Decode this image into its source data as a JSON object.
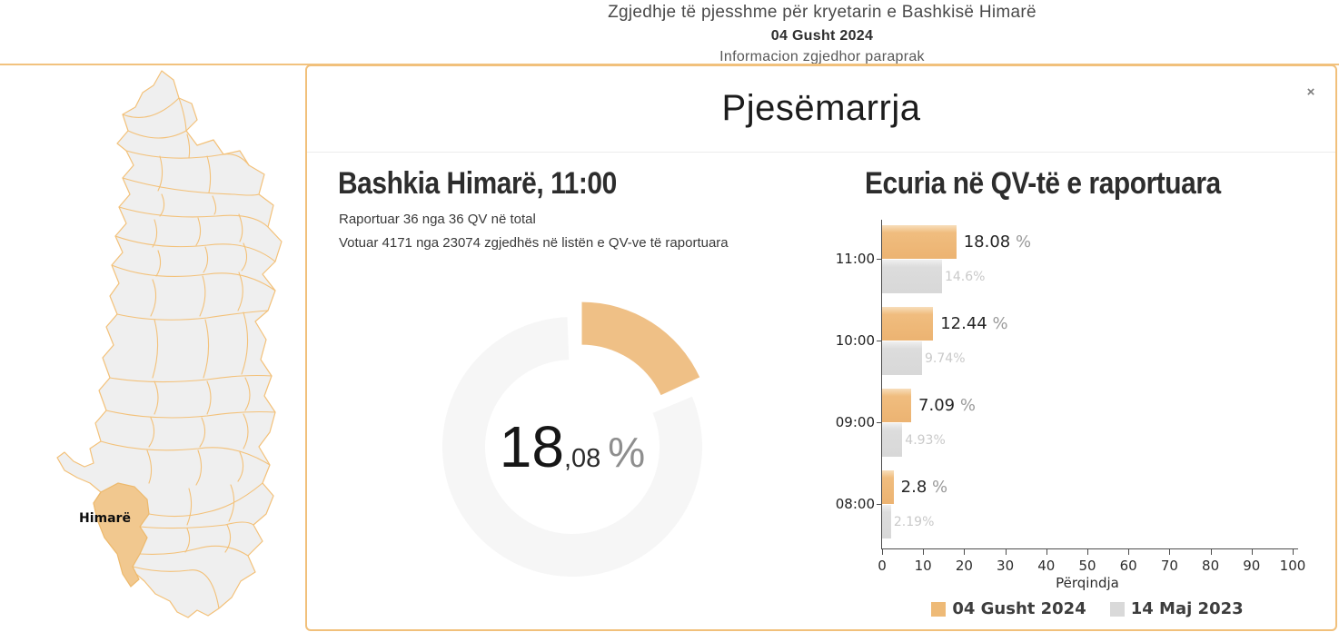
{
  "header": {
    "title": "Zgjedhje të pjesshme për kryetarin e Bashkisë Himarë",
    "date": "04 Gusht 2024",
    "subtitle": "Informacion zgjedhor paraprak"
  },
  "map": {
    "highlight_label": "Himarë",
    "region_fill": "#efefef",
    "border_color": "#f3c179",
    "highlight_fill": "#f1c88f"
  },
  "modal": {
    "title": "Pjesëmarrja",
    "close_label": "×"
  },
  "summary": {
    "heading": "Bashkia Himarë, 11:00",
    "line1": "Raportuar 36 nga 36 QV në total",
    "line2": "Votuar 4171 nga 23074 zgjedhës në listën e QV-ve të raportuara"
  },
  "chart_data": [
    {
      "type": "pie",
      "subtype": "donut",
      "value": 18.08,
      "int_part": "18",
      "dec_part": ",08",
      "unit": "%",
      "slice_color": "#efc086",
      "track_color": "#f6f6f6",
      "start_angle_deg": 0,
      "sweep_pct_of_circle": 18.08
    },
    {
      "type": "bar",
      "orientation": "horizontal",
      "title": "Ecuria në QV-të e raportuara",
      "categories": [
        "11:00",
        "10:00",
        "09:00",
        "08:00"
      ],
      "series": [
        {
          "name": "04 Gusht 2024",
          "color": "#eeba77",
          "values": [
            18.08,
            12.44,
            7.09,
            2.8
          ],
          "labels": [
            "18.08",
            "12.44",
            "7.09",
            "2.8"
          ],
          "label_unit": "%"
        },
        {
          "name": "14 Maj 2023",
          "color": "#d9d9d9",
          "values": [
            14.6,
            9.74,
            4.93,
            2.19
          ],
          "labels": [
            "14.6%",
            "9.74%",
            "4.93%",
            "2.19%"
          ]
        }
      ],
      "xlabel": "Përqindja",
      "xlim": [
        0,
        100
      ],
      "xticks": [
        0,
        10,
        20,
        30,
        40,
        50,
        60,
        70,
        80,
        90,
        100
      ],
      "grid": false,
      "legend_position": "bottom"
    }
  ]
}
